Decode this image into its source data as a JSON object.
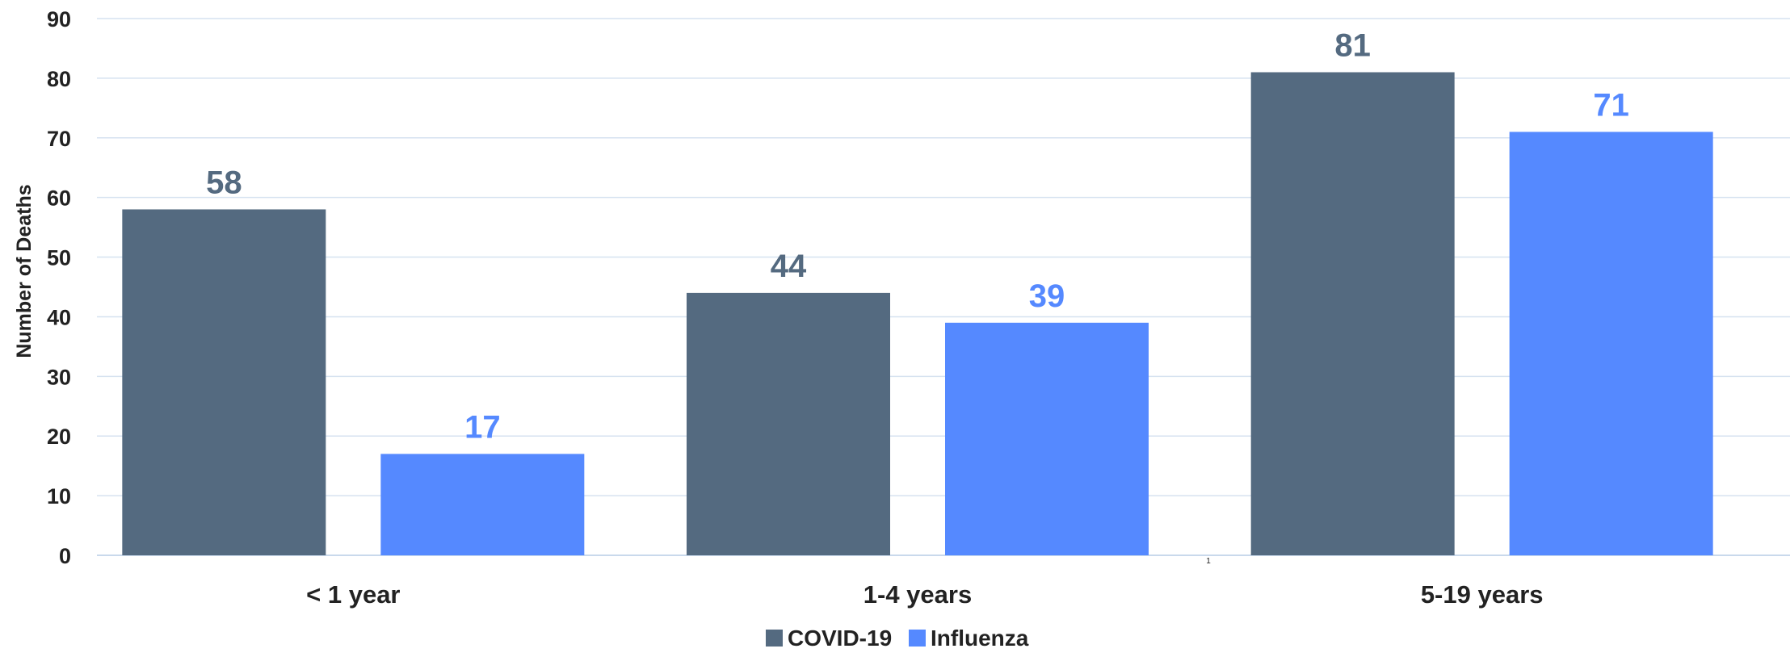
{
  "chart_data": {
    "type": "bar",
    "categories": [
      "< 1 year",
      "1-4 years",
      "5-19 years"
    ],
    "series": [
      {
        "name": "COVID-19",
        "values": [
          58,
          44,
          81
        ],
        "color": "#546a80"
      },
      {
        "name": "Influenza",
        "values": [
          17,
          39,
          71
        ],
        "color": "#5589ff"
      }
    ],
    "title": "",
    "xlabel": "",
    "ylabel": "Number of Deaths",
    "ylim": [
      0,
      90
    ],
    "yticks": [
      0,
      10,
      20,
      30,
      40,
      50,
      60,
      70,
      80,
      90
    ],
    "grid": true,
    "legend": "bottom-center",
    "footnote": "1"
  }
}
